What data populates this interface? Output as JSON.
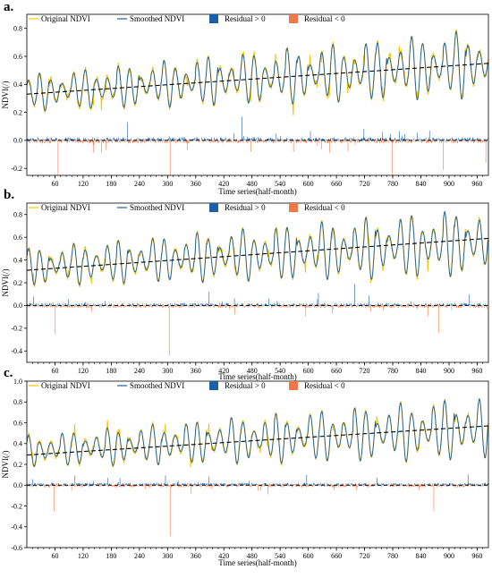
{
  "colors": {
    "original": "#f2c618",
    "smoothed": "#1f5f9c",
    "residual_pos": "#1b5fa8",
    "residual_neg": "#f07848",
    "trend": "#000000"
  },
  "chart_data": [
    {
      "type": "line",
      "panel_label": "a.",
      "xlabel": "Time series(half-month)",
      "ylabel": "NDVI(/)",
      "xlim": [
        0,
        984
      ],
      "ylim": [
        -0.25,
        0.9
      ],
      "xticks": [
        60,
        120,
        180,
        240,
        300,
        360,
        420,
        480,
        540,
        600,
        660,
        720,
        780,
        840,
        900,
        960
      ],
      "yticks": [
        -0.2,
        0.0,
        0.2,
        0.4,
        0.6,
        0.8
      ],
      "ytick_labels": [
        "-0.2",
        "0.0",
        "0.2",
        "0.4",
        "0.6",
        "0.8"
      ],
      "legend": [
        "Original NDVI",
        "Smoothed NDVI",
        "Residual > 0",
        "Residual < 0"
      ],
      "legend_position": "top",
      "trend": {
        "start": [
          0,
          0.33
        ],
        "end": [
          984,
          0.55
        ]
      },
      "series_params": {
        "period": 24,
        "base_start": 0.34,
        "base_end": 0.55,
        "amp_start": 0.11,
        "amp_end": 0.21
      },
      "residual_spikes": [
        {
          "x": 66,
          "y": -0.26
        },
        {
          "x": 214,
          "y": 0.13
        },
        {
          "x": 305,
          "y": -0.3
        },
        {
          "x": 458,
          "y": 0.17
        },
        {
          "x": 778,
          "y": -0.3
        },
        {
          "x": 887,
          "y": -0.21
        },
        {
          "x": 978,
          "y": -0.16
        }
      ]
    },
    {
      "type": "line",
      "panel_label": "b.",
      "xlabel": "Time series(half-month)",
      "ylabel": "NDVI(/)",
      "xlim": [
        0,
        984
      ],
      "ylim": [
        -0.5,
        0.9
      ],
      "xticks": [
        60,
        120,
        180,
        240,
        300,
        360,
        420,
        480,
        540,
        600,
        660,
        720,
        780,
        840,
        900,
        960
      ],
      "yticks": [
        -0.4,
        -0.2,
        0.0,
        0.2,
        0.4,
        0.6,
        0.8
      ],
      "ytick_labels": [
        "-0.4",
        "-0.2",
        "0.0",
        "0.2",
        "0.4",
        "0.6",
        "0.8"
      ],
      "legend": [
        "Original NDVI",
        "Smoothed NDVI",
        "Residual > 0",
        "Residual < 0"
      ],
      "legend_position": "top",
      "trend": {
        "start": [
          0,
          0.31
        ],
        "end": [
          984,
          0.59
        ]
      },
      "series_params": {
        "period": 24,
        "base_start": 0.34,
        "base_end": 0.56,
        "amp_start": 0.14,
        "amp_end": 0.26
      },
      "residual_spikes": [
        {
          "x": 60,
          "y": -0.25
        },
        {
          "x": 303,
          "y": -0.44
        },
        {
          "x": 388,
          "y": 0.12
        },
        {
          "x": 621,
          "y": 0.11
        },
        {
          "x": 698,
          "y": 0.19
        },
        {
          "x": 878,
          "y": -0.24
        },
        {
          "x": 942,
          "y": 0.1
        }
      ]
    },
    {
      "type": "line",
      "panel_label": "c.",
      "xlabel": "Time series(half-month)",
      "ylabel": "NDVI(/)",
      "xlim": [
        0,
        984
      ],
      "ylim": [
        -0.6,
        1.0
      ],
      "xticks": [
        60,
        120,
        180,
        240,
        300,
        360,
        420,
        480,
        540,
        600,
        660,
        720,
        780,
        840,
        900,
        960
      ],
      "yticks": [
        -0.6,
        -0.4,
        -0.2,
        0.0,
        0.2,
        0.4,
        0.6,
        0.8,
        1.0
      ],
      "ytick_labels": [
        "-0.6",
        "-0.4",
        "-0.2",
        "0.0",
        "0.2",
        "0.4",
        "0.6",
        "0.8",
        "1.0"
      ],
      "legend": [
        "Original NDVI",
        "Smoothed NDVI",
        "Residual > 0",
        "Residual < 0"
      ],
      "legend_position": "top",
      "trend": {
        "start": [
          0,
          0.29
        ],
        "end": [
          984,
          0.57
        ]
      },
      "series_params": {
        "period": 24,
        "base_start": 0.33,
        "base_end": 0.55,
        "amp_start": 0.13,
        "amp_end": 0.26
      },
      "residual_spikes": [
        {
          "x": 58,
          "y": -0.25
        },
        {
          "x": 305,
          "y": -0.49
        },
        {
          "x": 596,
          "y": 0.1
        },
        {
          "x": 867,
          "y": -0.25
        },
        {
          "x": 940,
          "y": 0.1
        }
      ]
    }
  ]
}
